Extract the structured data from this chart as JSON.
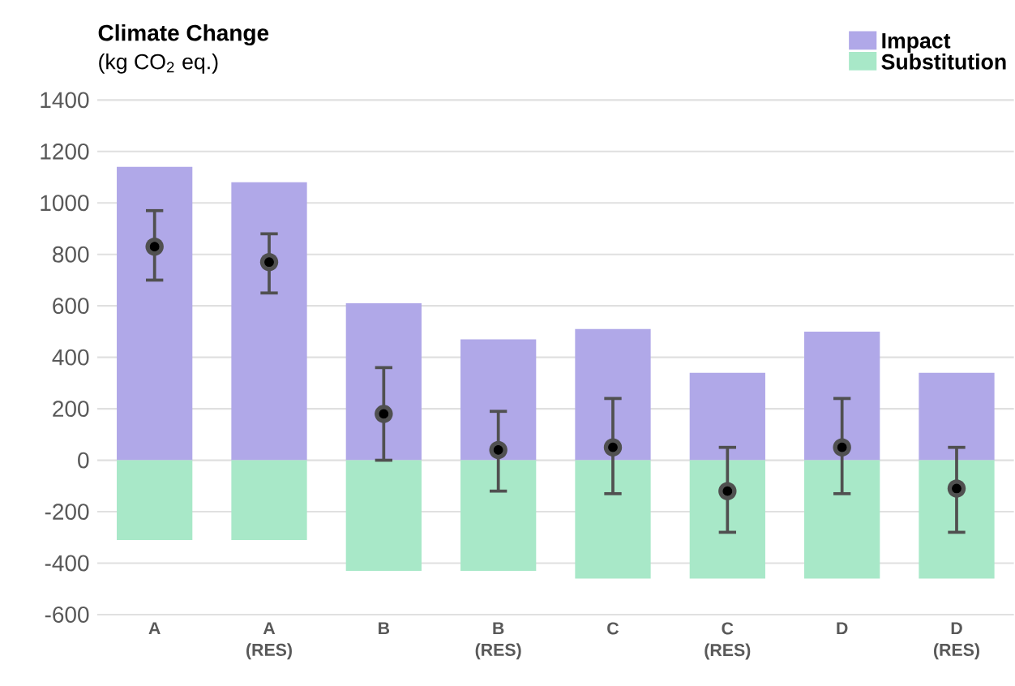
{
  "chart_data": {
    "type": "bar",
    "title": "Climate Change",
    "ylabel": "(kg CO$_{2}$ eq.)",
    "categories": [
      "A",
      "A (RES)",
      "B",
      "B (RES)",
      "C",
      "C (RES)",
      "D",
      "D (RES)"
    ],
    "stacked": true,
    "series": [
      {
        "name": "Impact",
        "color": "#b0a8e8",
        "values": [
          1140,
          1080,
          610,
          470,
          510,
          340,
          500,
          340
        ]
      },
      {
        "name": "Substitution",
        "color": "#a8e8c8",
        "values": [
          -310,
          -310,
          -430,
          -430,
          -460,
          -460,
          -460,
          -460
        ]
      },
      {
        "type": "scatter",
        "marker": "circle",
        "color": "#505050",
        "values": [
          830,
          770,
          180,
          40,
          50,
          -120,
          50,
          -110
        ],
        "errors": [
          [
            700,
            970
          ],
          [
            650,
            880
          ],
          [
            0,
            360
          ],
          [
            -120,
            190
          ],
          [
            -130,
            240
          ],
          [
            -280,
            50
          ],
          [
            -130,
            240
          ],
          [
            -280,
            50
          ]
        ]
      }
    ],
    "ylim": [
      -600,
      1400
    ],
    "yticks": [
      -600,
      -400,
      -200,
      0,
      200,
      400,
      600,
      800,
      1000,
      1200,
      1400
    ],
    "grid": "y",
    "legend": "top right"
  }
}
